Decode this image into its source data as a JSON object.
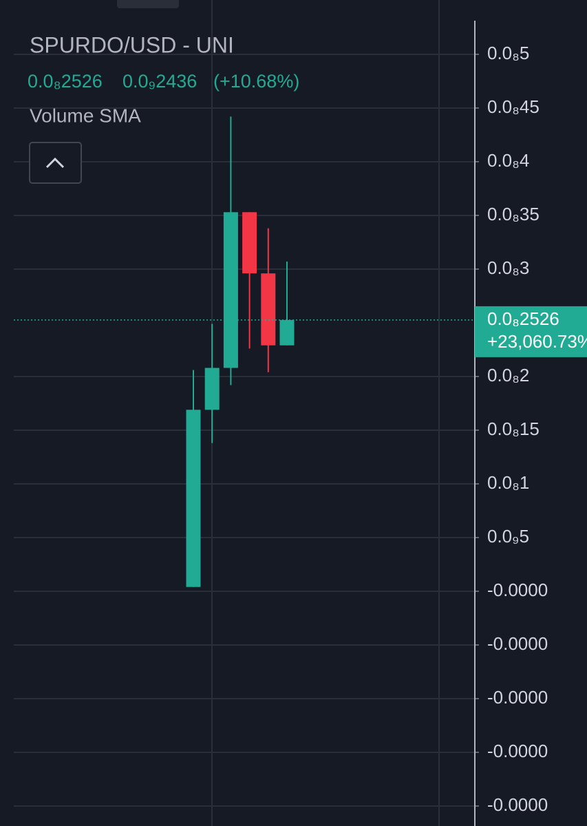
{
  "chart_data": {
    "type": "candlestick",
    "title": "SPURDO/USD - UNI",
    "legend_values": [
      "0.0₈2526",
      "0.0₉2436",
      "(+10.68%)"
    ],
    "indicator": "Volume SMA",
    "open": [
      4e-11,
      1.69e-09,
      2.08e-09,
      3.53e-09,
      2.96e-09,
      2.29e-09
    ],
    "high": [
      2.06e-09,
      2.49e-09,
      4.42e-09,
      3.53e-09,
      3.38e-09,
      3.07e-09
    ],
    "low": [
      4e-11,
      1.38e-09,
      1.92e-09,
      2.26e-09,
      2.04e-09,
      2.29e-09
    ],
    "close": [
      1.69e-09,
      2.08e-09,
      3.53e-09,
      2.96e-09,
      2.29e-09,
      2.526e-09
    ],
    "up_color": "#22ab94",
    "down_color": "#f23645",
    "ylim": [
      -2.186e-09,
      5.506e-09
    ],
    "yticks": [
      {
        "value": 5e-09,
        "label": "0.0₈5"
      },
      {
        "value": 4.5e-09,
        "label": "0.0₈45"
      },
      {
        "value": 4e-09,
        "label": "0.0₈4"
      },
      {
        "value": 3.5e-09,
        "label": "0.0₈35"
      },
      {
        "value": 3e-09,
        "label": "0.0₈3"
      },
      {
        "value": 2e-09,
        "label": "0.0₈2"
      },
      {
        "value": 1.5e-09,
        "label": "0.0₈15"
      },
      {
        "value": 1e-09,
        "label": "0.0₈1"
      },
      {
        "value": 5e-10,
        "label": "0.0₉5"
      },
      {
        "value": 0,
        "label": "-0.0000"
      },
      {
        "value": -5e-10,
        "label": "-0.0000"
      },
      {
        "value": -1e-09,
        "label": "-0.0000"
      },
      {
        "value": -1.5e-09,
        "label": "-0.0000"
      },
      {
        "value": -2e-09,
        "label": "-0.0000"
      }
    ],
    "last_price": {
      "value": 2.526e-09,
      "label": "0.0₈2526"
    },
    "last_change": "+23,060.73%",
    "grid": true
  }
}
